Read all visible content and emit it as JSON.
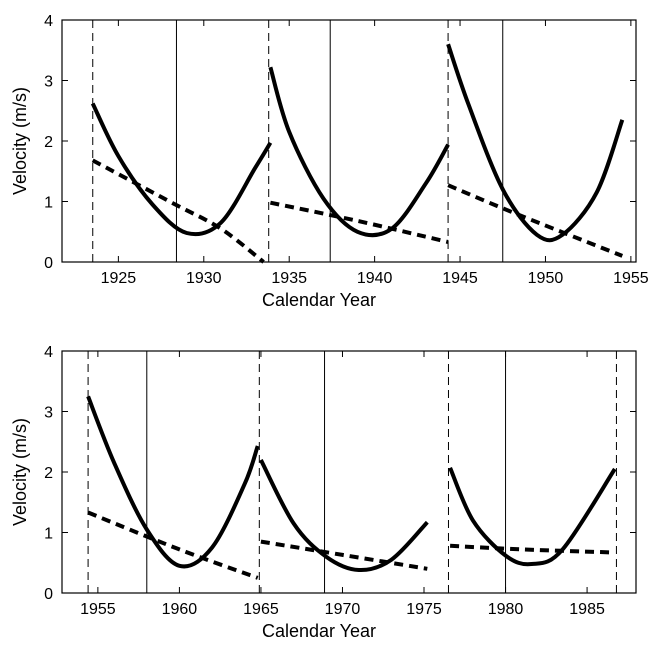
{
  "chart_data": [
    {
      "type": "line",
      "id": "top",
      "xlabel": "Calendar Year",
      "ylabel": "Velocity (m/s)",
      "xlim": [
        1921.7,
        1955.3
      ],
      "ylim": [
        0,
        4
      ],
      "xticks": [
        1925,
        1930,
        1935,
        1940,
        1945,
        1950,
        1955
      ],
      "yticks": [
        0,
        1,
        2,
        3,
        4
      ],
      "dashed_verticals": [
        1923.5,
        1933.8,
        1944.3
      ],
      "solid_verticals": [
        1928.4,
        1937.4,
        1947.5
      ],
      "series": [
        {
          "name": "solid-segment-1",
          "style": "solid",
          "x": [
            1923.5,
            1925,
            1927,
            1929,
            1931,
            1933,
            1933.9
          ],
          "values": [
            2.62,
            1.75,
            0.95,
            0.48,
            0.65,
            1.55,
            1.97
          ]
        },
        {
          "name": "solid-segment-2",
          "style": "solid",
          "x": [
            1933.9,
            1935,
            1937,
            1939,
            1941,
            1943,
            1944.3
          ],
          "values": [
            3.22,
            2.15,
            1.05,
            0.5,
            0.55,
            1.3,
            1.94
          ]
        },
        {
          "name": "solid-segment-3",
          "style": "solid",
          "x": [
            1944.3,
            1945.5,
            1947.5,
            1949.5,
            1951,
            1953,
            1954.5
          ],
          "values": [
            3.6,
            2.6,
            1.2,
            0.45,
            0.45,
            1.15,
            2.35
          ]
        },
        {
          "name": "dashed-segment-1",
          "style": "dashed",
          "x": [
            1923.5,
            1928,
            1931,
            1933.5
          ],
          "values": [
            1.68,
            1.0,
            0.55,
            0.0
          ]
        },
        {
          "name": "dashed-segment-2",
          "style": "dashed",
          "x": [
            1933.9,
            1939,
            1944.3
          ],
          "values": [
            0.98,
            0.68,
            0.33
          ]
        },
        {
          "name": "dashed-segment-3",
          "style": "dashed",
          "x": [
            1944.3,
            1948,
            1954.5
          ],
          "values": [
            1.27,
            0.83,
            0.1
          ]
        }
      ]
    },
    {
      "type": "line",
      "id": "bottom",
      "xlabel": "Calendar Year",
      "ylabel": "Velocity (m/s)",
      "xlim": [
        1952.8,
        1988
      ],
      "ylim": [
        0,
        4
      ],
      "xticks": [
        1955,
        1960,
        1965,
        1970,
        1975,
        1980,
        1985
      ],
      "yticks": [
        0,
        1,
        2,
        3,
        4
      ],
      "dashed_verticals": [
        1954.4,
        1964.9,
        1976.5,
        1986.8
      ],
      "solid_verticals": [
        1958,
        1968.9,
        1980
      ],
      "series": [
        {
          "name": "solid-segment-1",
          "style": "solid",
          "x": [
            1954.4,
            1956,
            1958,
            1960,
            1962,
            1964,
            1964.8
          ],
          "values": [
            3.25,
            2.15,
            1.05,
            0.45,
            0.75,
            1.8,
            2.43
          ]
        },
        {
          "name": "solid-segment-2",
          "style": "solid",
          "x": [
            1965,
            1967,
            1969,
            1971,
            1973,
            1975.2
          ],
          "values": [
            2.2,
            1.15,
            0.6,
            0.38,
            0.55,
            1.17
          ]
        },
        {
          "name": "solid-segment-3",
          "style": "solid",
          "x": [
            1976.6,
            1978,
            1980,
            1981.6,
            1983.5,
            1986.7
          ],
          "values": [
            2.07,
            1.2,
            0.62,
            0.48,
            0.72,
            2.05
          ]
        },
        {
          "name": "dashed-segment-1",
          "style": "dashed",
          "x": [
            1954.4,
            1960,
            1964.8
          ],
          "values": [
            1.33,
            0.72,
            0.25
          ]
        },
        {
          "name": "dashed-segment-2",
          "style": "dashed",
          "x": [
            1965,
            1970,
            1975.2
          ],
          "values": [
            0.85,
            0.63,
            0.4
          ]
        },
        {
          "name": "dashed-segment-3",
          "style": "dashed",
          "x": [
            1976.6,
            1981,
            1986.7
          ],
          "values": [
            0.78,
            0.72,
            0.67
          ]
        }
      ]
    }
  ]
}
